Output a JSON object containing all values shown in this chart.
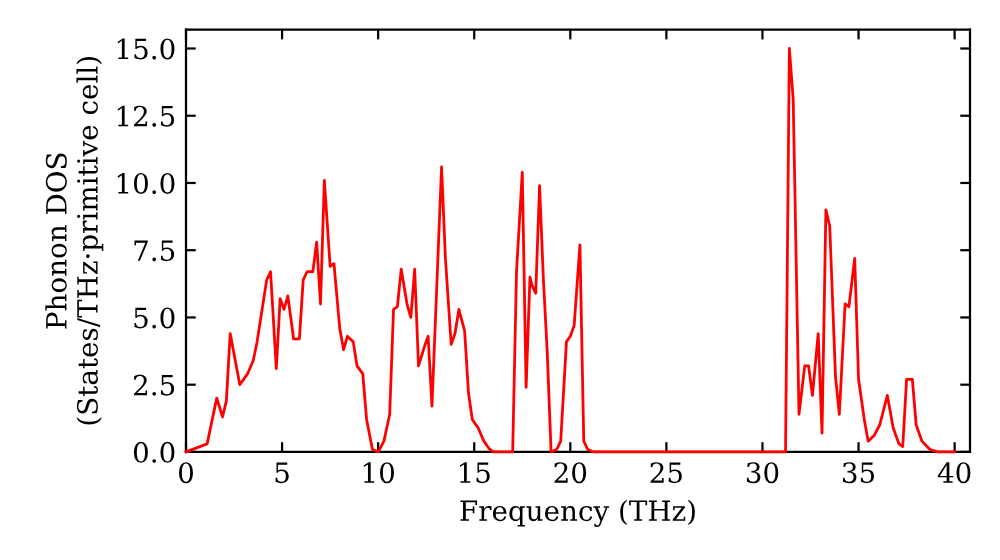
{
  "chart_data": {
    "type": "line",
    "xlabel": "Frequency (THz)",
    "ylabel": "Phonon DOS\n(States/THz·primitive cell)",
    "series": [
      {
        "color": "#ff0000",
        "x": [
          0,
          1.1,
          1.6,
          1.9,
          2.1,
          2.3,
          2.8,
          3.2,
          3.5,
          3.7,
          4.2,
          4.4,
          4.7,
          4.9,
          5.1,
          5.3,
          5.6,
          5.9,
          6.1,
          6.3,
          6.6,
          6.8,
          7.0,
          7.2,
          7.5,
          7.7,
          8.0,
          8.2,
          8.4,
          8.7,
          8.9,
          9.2,
          9.4,
          9.7,
          10.0,
          10.3,
          10.6,
          10.8,
          11.0,
          11.2,
          11.5,
          11.7,
          11.9,
          12.1,
          12.4,
          12.6,
          12.8,
          13.3,
          13.5,
          13.8,
          14.0,
          14.2,
          14.5,
          14.7,
          14.9,
          15.2,
          15.5,
          15.8,
          16.0,
          17.0,
          17.2,
          17.5,
          17.7,
          17.9,
          18.0,
          18.2,
          18.4,
          18.6,
          18.8,
          19.0,
          19.3,
          19.5,
          19.8,
          20.0,
          20.2,
          20.5,
          20.7,
          20.9,
          21.2,
          31.2,
          31.4,
          31.6,
          31.9,
          32.2,
          32.4,
          32.6,
          32.9,
          33.1,
          33.3,
          33.5,
          33.8,
          34.0,
          34.3,
          34.5,
          34.8,
          35.0,
          35.3,
          35.5,
          35.8,
          36.1,
          36.5,
          36.8,
          37.1,
          37.3,
          37.5,
          37.8,
          38.0,
          38.3,
          38.7,
          39.1,
          40
        ],
        "values": [
          0,
          0.3,
          2.0,
          1.3,
          1.9,
          4.4,
          2.5,
          2.9,
          3.4,
          4.1,
          6.4,
          6.7,
          3.1,
          5.7,
          5.3,
          5.8,
          4.2,
          4.2,
          6.4,
          6.7,
          6.7,
          7.8,
          5.5,
          10.1,
          6.9,
          7.0,
          4.6,
          3.8,
          4.3,
          4.1,
          3.2,
          2.9,
          1.2,
          0.1,
          0,
          0.4,
          1.4,
          5.3,
          5.4,
          6.8,
          5.5,
          5.0,
          6.8,
          3.2,
          3.9,
          4.3,
          1.7,
          10.6,
          7.2,
          4.0,
          4.4,
          5.3,
          4.5,
          2.2,
          1.2,
          0.9,
          0.4,
          0.1,
          0,
          0,
          6.7,
          10.4,
          2.4,
          6.5,
          6.2,
          5.9,
          9.9,
          6.4,
          3.7,
          0,
          0.1,
          0.4,
          4.1,
          4.3,
          4.7,
          7.7,
          0.4,
          0.1,
          0,
          0,
          15.0,
          13.1,
          1.4,
          3.2,
          3.2,
          2.1,
          4.4,
          0.7,
          9.0,
          8.4,
          2.8,
          1.4,
          5.5,
          5.4,
          7.2,
          2.7,
          1.2,
          0.4,
          0.6,
          1.0,
          2.1,
          0.9,
          0.3,
          0.2,
          2.7,
          2.7,
          1.0,
          0.4,
          0.1,
          0,
          0
        ]
      }
    ],
    "xlim": [
      0,
      40.8
    ],
    "ylim": [
      0,
      15.7
    ],
    "xticks": [
      0,
      5,
      10,
      15,
      20,
      25,
      30,
      35,
      40
    ],
    "yticks": [
      {
        "value": 0,
        "label": "0.0"
      },
      {
        "value": 2.5,
        "label": "2.5"
      },
      {
        "value": 5,
        "label": "5.0"
      },
      {
        "value": 7.5,
        "label": "7.5"
      },
      {
        "value": 10,
        "label": "10.0"
      },
      {
        "value": 12.5,
        "label": "12.5"
      },
      {
        "value": 15,
        "label": "15.0"
      }
    ],
    "grid": false,
    "legend": false
  }
}
